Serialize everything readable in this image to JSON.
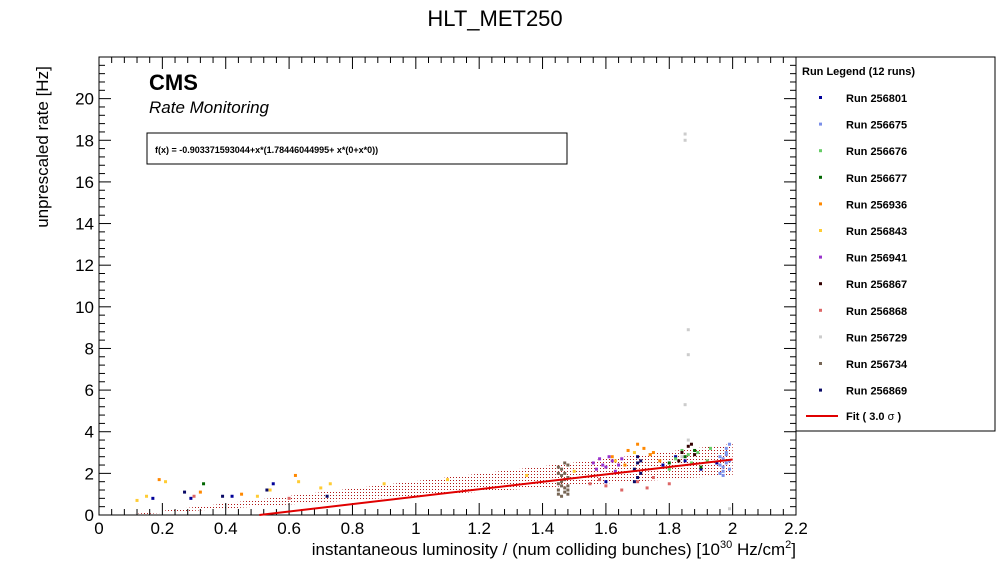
{
  "chart_data": {
    "type": "scatter",
    "title": "HLT_MET250",
    "xlabel": "instantaneous luminosity / (num colliding bunches) [10",
    "xlabel_exp": "30",
    "xlabel_unit": " Hz/cm",
    "xlabel_exp2": "2",
    "xlabel_close": "]",
    "ylabel": "unprescaled rate [Hz]",
    "xlim": [
      0,
      2.2
    ],
    "ylim": [
      0,
      22
    ],
    "x_ticks": [
      "0",
      "0.2",
      "0.4",
      "0.6",
      "0.8",
      "1",
      "1.2",
      "1.4",
      "1.6",
      "1.8",
      "2",
      "2.2"
    ],
    "y_ticks": [
      "0",
      "2",
      "4",
      "6",
      "8",
      "10",
      "12",
      "14",
      "16",
      "18",
      "20"
    ],
    "brand": "CMS",
    "subtitle": "Rate Monitoring",
    "fit_formula": "f(x) = -0.903371593044+x*(1.78446044995+ x*(0+x*0))",
    "fit": {
      "intercept": -0.903371593044,
      "slope": 1.78446044995,
      "sigma_band": 0.75,
      "x_range": [
        0.1,
        2.0
      ],
      "color": "#e00000"
    },
    "legend_title": "Run Legend (12 runs)",
    "fit_legend_label": "Fit ( 3.0",
    "fit_legend_sigma": "σ",
    "fit_legend_close": ")",
    "series": [
      {
        "name": "Run 256801",
        "color": "#000099",
        "points": [
          [
            0.17,
            0.8
          ],
          [
            0.29,
            0.8
          ],
          [
            0.42,
            0.9
          ],
          [
            0.55,
            1.5
          ],
          [
            1.6,
            1.6
          ],
          [
            1.78,
            2.4
          ],
          [
            1.85,
            2.6
          ],
          [
            1.9,
            2.2
          ],
          [
            1.82,
            2.8
          ],
          [
            1.95,
            2.5
          ]
        ]
      },
      {
        "name": "Run 256675",
        "color": "#7b8fe8",
        "points": [
          [
            1.96,
            2.4
          ],
          [
            1.97,
            2.7
          ],
          [
            1.98,
            3.0
          ],
          [
            1.99,
            2.2
          ],
          [
            1.96,
            2.0
          ],
          [
            1.97,
            1.9
          ],
          [
            1.98,
            3.2
          ],
          [
            1.99,
            2.6
          ],
          [
            1.97,
            2.3
          ],
          [
            1.98,
            2.9
          ],
          [
            1.96,
            2.8
          ],
          [
            1.99,
            3.4
          ],
          [
            1.97,
            2.1
          ],
          [
            1.98,
            2.5
          ]
        ]
      },
      {
        "name": "Run 256676",
        "color": "#66cc66",
        "points": [
          [
            1.82,
            2.7
          ],
          [
            1.84,
            3.1
          ],
          [
            1.87,
            2.5
          ],
          [
            1.89,
            3.0
          ],
          [
            1.92,
            2.6
          ],
          [
            1.93,
            3.2
          ],
          [
            1.8,
            2.2
          ],
          [
            1.86,
            2.9
          ]
        ]
      },
      {
        "name": "Run 256677",
        "color": "#006600",
        "points": [
          [
            0.33,
            1.5
          ],
          [
            1.8,
            2.5
          ],
          [
            1.85,
            2.8
          ],
          [
            1.88,
            3.1
          ],
          [
            1.9,
            2.3
          ]
        ]
      },
      {
        "name": "Run 256936",
        "color": "#ff8800",
        "points": [
          [
            0.19,
            1.7
          ],
          [
            0.32,
            1.1
          ],
          [
            0.45,
            1.0
          ],
          [
            0.62,
            1.9
          ],
          [
            1.62,
            2.8
          ],
          [
            1.67,
            3.1
          ],
          [
            1.7,
            3.4
          ],
          [
            1.74,
            2.9
          ],
          [
            1.77,
            2.6
          ],
          [
            1.72,
            3.2
          ],
          [
            1.66,
            2.4
          ],
          [
            1.75,
            3.0
          ]
        ]
      },
      {
        "name": "Run 256843",
        "color": "#ffcc33",
        "points": [
          [
            0.12,
            0.7
          ],
          [
            0.15,
            0.9
          ],
          [
            0.21,
            1.6
          ],
          [
            0.5,
            0.9
          ],
          [
            0.54,
            1.2
          ],
          [
            0.63,
            1.6
          ],
          [
            0.7,
            1.3
          ],
          [
            0.73,
            1.5
          ],
          [
            0.9,
            1.5
          ],
          [
            1.1,
            1.7
          ],
          [
            1.35,
            1.9
          ],
          [
            1.5,
            2.1
          ],
          [
            1.63,
            2.6
          ],
          [
            1.69,
            3.0
          ]
        ]
      },
      {
        "name": "Run 256941",
        "color": "#9933cc",
        "points": [
          [
            1.56,
            2.5
          ],
          [
            1.58,
            2.7
          ],
          [
            1.6,
            2.3
          ],
          [
            1.62,
            2.6
          ],
          [
            1.64,
            2.4
          ],
          [
            1.57,
            2.2
          ],
          [
            1.61,
            2.8
          ],
          [
            1.63,
            2.1
          ],
          [
            1.65,
            2.7
          ],
          [
            1.59,
            2.4
          ]
        ]
      },
      {
        "name": "Run 256867",
        "color": "#330000",
        "points": [
          [
            1.84,
            3.0
          ],
          [
            1.86,
            3.3
          ],
          [
            1.88,
            2.9
          ],
          [
            1.83,
            2.6
          ],
          [
            1.87,
            3.4
          ]
        ]
      },
      {
        "name": "Run 256868",
        "color": "#dd6666",
        "points": [
          [
            0.3,
            0.9
          ],
          [
            0.6,
            0.8
          ],
          [
            1.55,
            1.5
          ],
          [
            1.6,
            1.4
          ],
          [
            1.65,
            1.2
          ],
          [
            1.7,
            1.6
          ],
          [
            1.75,
            1.8
          ],
          [
            1.8,
            1.5
          ],
          [
            1.58,
            1.7
          ],
          [
            1.73,
            1.3
          ]
        ]
      },
      {
        "name": "Run 256729",
        "color": "#cccccc",
        "points": [
          [
            1.85,
            18.3
          ],
          [
            1.85,
            18.0
          ],
          [
            1.86,
            8.9
          ],
          [
            1.86,
            7.7
          ],
          [
            1.85,
            5.3
          ],
          [
            1.84,
            2.8
          ],
          [
            1.99,
            0.3
          ],
          [
            1.86,
            3.6
          ]
        ]
      },
      {
        "name": "Run 256734",
        "color": "#776655",
        "points": [
          [
            1.45,
            1.2
          ],
          [
            1.46,
            1.6
          ],
          [
            1.47,
            2.0
          ],
          [
            1.48,
            1.4
          ],
          [
            1.45,
            2.3
          ],
          [
            1.46,
            0.9
          ],
          [
            1.47,
            1.1
          ],
          [
            1.48,
            1.8
          ],
          [
            1.45,
            1.5
          ],
          [
            1.46,
            2.2
          ],
          [
            1.47,
            1.3
          ],
          [
            1.48,
            2.4
          ],
          [
            1.45,
            1.0
          ],
          [
            1.46,
            1.9
          ],
          [
            1.47,
            1.7
          ],
          [
            1.48,
            1.2
          ],
          [
            1.45,
            2.0
          ],
          [
            1.46,
            1.4
          ],
          [
            1.47,
            2.5
          ],
          [
            1.48,
            1.0
          ]
        ]
      },
      {
        "name": "Run 256869",
        "color": "#0a0a66",
        "points": [
          [
            0.27,
            1.1
          ],
          [
            0.39,
            0.9
          ],
          [
            0.53,
            1.2
          ],
          [
            0.72,
            0.9
          ],
          [
            1.69,
            2.2
          ],
          [
            1.7,
            2.5
          ],
          [
            1.71,
            2.0
          ],
          [
            1.7,
            1.8
          ],
          [
            1.7,
            2.8
          ],
          [
            1.69,
            1.6
          ],
          [
            1.71,
            2.6
          ]
        ]
      }
    ]
  }
}
